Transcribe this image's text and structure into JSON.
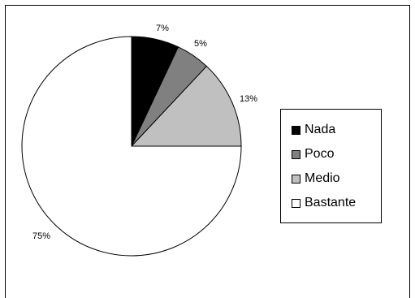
{
  "chart_data": {
    "type": "pie",
    "categories": [
      "Nada",
      "Poco",
      "Medio",
      "Bastante"
    ],
    "values": [
      7,
      5,
      13,
      75
    ],
    "labels": [
      "7%",
      "5%",
      "13%",
      "75%"
    ],
    "colors": [
      "#000000",
      "#808080",
      "#c0c0c0",
      "#ffffff"
    ],
    "title": "",
    "legend_position": "right"
  }
}
